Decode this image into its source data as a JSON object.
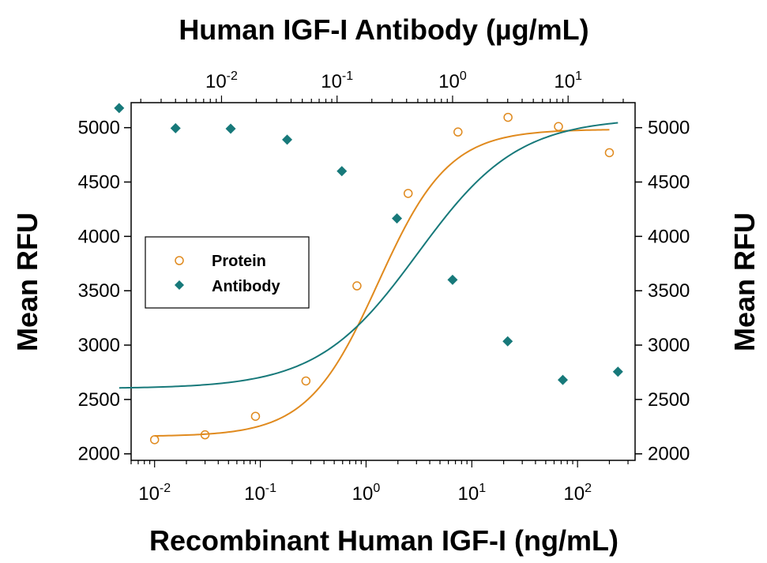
{
  "chart_data": {
    "type": "scatter",
    "title": "Human IGF-I Antibody (µg/mL)",
    "xlabel": "Recombinant Human IGF-I (ng/mL)",
    "ylabel": "Mean RFU",
    "ylabel_right": "Mean RFU",
    "x_scale": "log",
    "xlim": [
      0.006,
      350
    ],
    "ylim": [
      1940,
      5230
    ],
    "yticks": [
      2000,
      2500,
      3000,
      3500,
      4000,
      4500,
      5000
    ],
    "xticks_bottom": [
      {
        "value": 0.01,
        "base": "10",
        "exp": "-2"
      },
      {
        "value": 0.1,
        "base": "10",
        "exp": "-1"
      },
      {
        "value": 1,
        "base": "10",
        "exp": "0"
      },
      {
        "value": 10,
        "base": "10",
        "exp": "1"
      },
      {
        "value": 100,
        "base": "10",
        "exp": "2"
      }
    ],
    "x2_scale": "log",
    "x2lim": [
      0.00165,
      38
    ],
    "xticks_top": [
      {
        "value": 0.01,
        "base": "10",
        "exp": "-2"
      },
      {
        "value": 0.1,
        "base": "10",
        "exp": "-1"
      },
      {
        "value": 1,
        "base": "10",
        "exp": "0"
      },
      {
        "value": 10,
        "base": "10",
        "exp": "1"
      }
    ],
    "legend": {
      "placement": "center-left"
    },
    "series": [
      {
        "name": "Protein",
        "axis": "bottom",
        "marker": "open-circle",
        "color": "#E08A1E",
        "x": [
          0.01,
          0.03,
          0.09,
          0.27,
          0.82,
          2.5,
          7.4,
          22,
          66,
          200
        ],
        "y": [
          2130,
          2175,
          2345,
          2670,
          3545,
          4395,
          4960,
          5095,
          5010,
          4770
        ],
        "fit": {
          "bottom": 2160,
          "top": 4985,
          "ec50": 1.3,
          "hill": 1.3
        }
      },
      {
        "name": "Antibody",
        "axis": "top",
        "marker": "filled-diamond",
        "color": "#17797A",
        "x": [
          0.0013,
          0.004,
          0.012,
          0.037,
          0.11,
          0.33,
          1.0,
          3.0,
          9.0,
          27
        ],
        "y": [
          5180,
          4995,
          4990,
          4890,
          4600,
          4165,
          3600,
          3035,
          2680,
          2755
        ],
        "fit": {
          "bottom": 2600,
          "top": 5090,
          "ec50": 0.5,
          "hill": 1.0
        }
      }
    ]
  }
}
